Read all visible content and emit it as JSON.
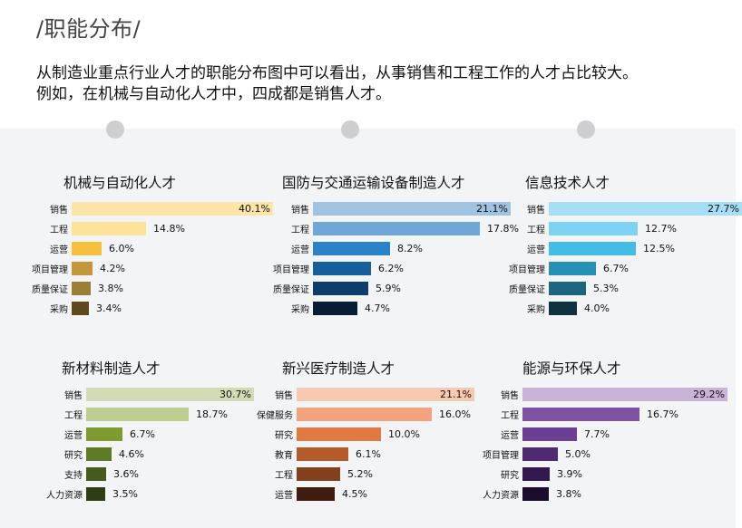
{
  "section_title": "/职能分布/",
  "description": [
    "从制造业重点行业人才的职能分布图中可以看出，从事销售和工程工作的人才占比较大。",
    "例如，在机械与自动化人才中，四成都是销售人才。"
  ],
  "chart_data": [
    {
      "type": "bar",
      "orientation": "horizontal",
      "title": "机械与自动化人才",
      "categories": [
        "销售",
        "工程",
        "运营",
        "项目管理",
        "质量保证",
        "采购"
      ],
      "values": [
        40.1,
        14.8,
        6.0,
        4.2,
        3.8,
        3.4
      ],
      "labels": [
        "40.1%",
        "14.8%",
        "6.0%",
        "4.2%",
        "3.8%",
        "3.4%"
      ],
      "colors": [
        "#fde4a8",
        "#fde29a",
        "#f6c03c",
        "#c4973a",
        "#9b7f36",
        "#5f4a1c"
      ],
      "xlim": [
        0,
        40.1
      ]
    },
    {
      "type": "bar",
      "orientation": "horizontal",
      "title": "国防与交通运输设备制造人才",
      "categories": [
        "销售",
        "工程",
        "运营",
        "项目管理",
        "质量保证",
        "采购"
      ],
      "values": [
        21.1,
        17.8,
        8.2,
        6.2,
        5.9,
        4.7
      ],
      "labels": [
        "21.1%",
        "17.8%",
        "8.2%",
        "6.2%",
        "5.9%",
        "4.7%"
      ],
      "colors": [
        "#9fc3e0",
        "#6fa8d6",
        "#2a82c8",
        "#155f9d",
        "#0e3d6b",
        "#071d36"
      ],
      "xlim": [
        0,
        21.1
      ]
    },
    {
      "type": "bar",
      "orientation": "horizontal",
      "title": "信息技术人才",
      "categories": [
        "销售",
        "工程",
        "运营",
        "项目管理",
        "质量保证",
        "采购"
      ],
      "values": [
        27.7,
        12.7,
        12.5,
        6.7,
        5.3,
        4.0
      ],
      "labels": [
        "27.7%",
        "12.7%",
        "12.5%",
        "6.7%",
        "5.3%",
        "4.0%"
      ],
      "colors": [
        "#a7def5",
        "#7fd3f2",
        "#44bde6",
        "#2791b5",
        "#1d6680",
        "#10313f"
      ],
      "xlim": [
        0,
        27.7
      ]
    },
    {
      "type": "bar",
      "orientation": "horizontal",
      "title": "新材料制造人才",
      "categories": [
        "销售",
        "工程",
        "运营",
        "研究",
        "支持",
        "人力资源"
      ],
      "values": [
        30.7,
        18.7,
        6.7,
        4.6,
        3.6,
        3.5
      ],
      "labels": [
        "30.7%",
        "18.7%",
        "6.7%",
        "4.6%",
        "3.6%",
        "3.5%"
      ],
      "colors": [
        "#d3dbb6",
        "#bccf8f",
        "#7f9a2e",
        "#5f7a25",
        "#455a1b",
        "#2e3d14"
      ],
      "xlim": [
        0,
        30.7
      ]
    },
    {
      "type": "bar",
      "orientation": "horizontal",
      "title": "新兴医疗制造人才",
      "categories": [
        "销售",
        "保健服务",
        "研究",
        "教育",
        "工程",
        "运营"
      ],
      "values": [
        21.1,
        16.0,
        10.0,
        6.1,
        5.2,
        4.5
      ],
      "labels": [
        "21.1%",
        "16.0%",
        "10.0%",
        "6.1%",
        "5.2%",
        "4.5%"
      ],
      "colors": [
        "#f7c9b0",
        "#f2a27c",
        "#e07a42",
        "#b45a2b",
        "#83401d",
        "#3f1d0e"
      ],
      "xlim": [
        0,
        21.1
      ]
    },
    {
      "type": "bar",
      "orientation": "horizontal",
      "title": "能源与环保人才",
      "categories": [
        "销售",
        "工程",
        "运营",
        "项目管理",
        "研究",
        "人力资源"
      ],
      "values": [
        29.2,
        16.7,
        7.7,
        5.0,
        3.9,
        3.8
      ],
      "labels": [
        "29.2%",
        "16.7%",
        "7.7%",
        "5.0%",
        "3.9%",
        "3.8%"
      ],
      "colors": [
        "#c9b3d8",
        "#7d52a3",
        "#6a3f94",
        "#4e2a72",
        "#32184d",
        "#1b0c2b"
      ],
      "xlim": [
        0,
        29.2
      ]
    }
  ]
}
